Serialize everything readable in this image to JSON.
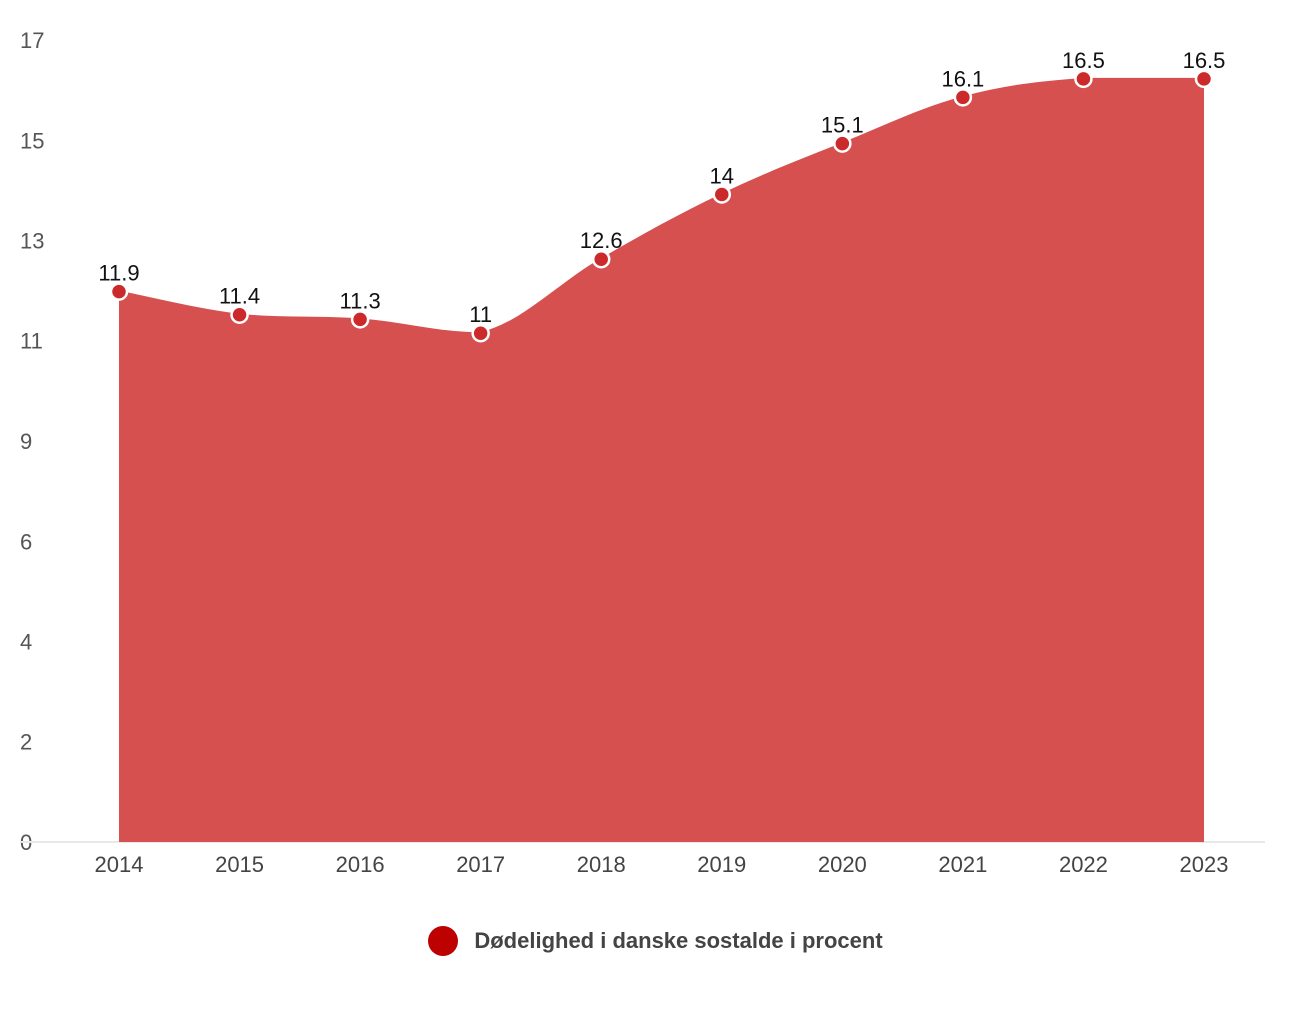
{
  "chart_data": {
    "type": "area",
    "title": "",
    "xlabel": "",
    "ylabel": "",
    "x": [
      "2014",
      "2015",
      "2016",
      "2017",
      "2018",
      "2019",
      "2020",
      "2021",
      "2022",
      "2023"
    ],
    "series": [
      {
        "name": "Dødelighed i danske sostalde i procent",
        "values": [
          11.9,
          11.4,
          11.3,
          11,
          12.6,
          14,
          15.1,
          16.1,
          16.5,
          16.5
        ],
        "data_labels": [
          "11.9",
          "11.4",
          "11.3",
          "11",
          "12.6",
          "14",
          "15.1",
          "16.1",
          "16.5",
          "16.5"
        ],
        "color": "#d65050",
        "marker_color": "#cc2a2a"
      }
    ],
    "ylim": [
      0,
      17.34
    ],
    "yticks": [
      0,
      2.17,
      4.34,
      6.5,
      8.67,
      10.84,
      13.0,
      15.17,
      17.34
    ],
    "ytick_labels": [
      "0",
      "2",
      "4",
      "6",
      "9",
      "11",
      "13",
      "15",
      "17"
    ],
    "grid": false,
    "legend_position": "bottom-center"
  },
  "legend": {
    "label": "Dødelighed i danske sostalde i procent",
    "color": "#bd0000"
  }
}
